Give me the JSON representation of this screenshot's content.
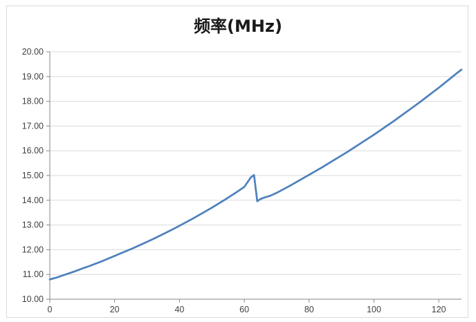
{
  "chart_data": {
    "type": "line",
    "title": "频率(MHz)",
    "xlabel": "",
    "ylabel": "",
    "xlim": [
      0,
      127
    ],
    "ylim": [
      10,
      20
    ],
    "x_ticks": [
      0,
      20,
      40,
      60,
      80,
      100,
      120
    ],
    "x_tick_labels": [
      "0",
      "20",
      "40",
      "60",
      "80",
      "100",
      "120"
    ],
    "y_ticks": [
      10,
      11,
      12,
      13,
      14,
      15,
      16,
      17,
      18,
      19,
      20
    ],
    "y_tick_labels": [
      "10.00",
      "11.00",
      "12.00",
      "13.00",
      "14.00",
      "15.00",
      "16.00",
      "17.00",
      "18.00",
      "19.00",
      "20.00"
    ],
    "grid": true,
    "legend": "none",
    "colors": {
      "line": "#4f81bd",
      "grid": "#d9d9d9",
      "axis": "#868686"
    },
    "series": [
      {
        "x": [
          0,
          2,
          4,
          6,
          8,
          10,
          12,
          14,
          16,
          18,
          20,
          22,
          24,
          26,
          28,
          30,
          32,
          34,
          36,
          38,
          40,
          42,
          44,
          46,
          48,
          50,
          52,
          54,
          56,
          58,
          60,
          62,
          63,
          64,
          65,
          66,
          68,
          70,
          72,
          74,
          76,
          78,
          80,
          82,
          84,
          86,
          88,
          90,
          92,
          94,
          96,
          98,
          100,
          102,
          104,
          106,
          108,
          110,
          112,
          114,
          116,
          118,
          120,
          122,
          124,
          126,
          127
        ],
        "values": [
          10.8,
          10.87,
          10.96,
          11.05,
          11.14,
          11.24,
          11.33,
          11.43,
          11.53,
          11.64,
          11.75,
          11.86,
          11.97,
          12.08,
          12.2,
          12.32,
          12.44,
          12.57,
          12.7,
          12.83,
          12.97,
          13.11,
          13.25,
          13.4,
          13.55,
          13.7,
          13.86,
          14.02,
          14.19,
          14.36,
          14.54,
          14.92,
          15.02,
          13.96,
          14.05,
          14.1,
          14.18,
          14.3,
          14.44,
          14.58,
          14.73,
          14.88,
          15.03,
          15.18,
          15.33,
          15.49,
          15.65,
          15.81,
          15.97,
          16.14,
          16.31,
          16.48,
          16.65,
          16.83,
          17.01,
          17.19,
          17.38,
          17.57,
          17.76,
          17.95,
          18.15,
          18.35,
          18.55,
          18.76,
          18.97,
          19.18,
          19.28
        ]
      }
    ]
  }
}
